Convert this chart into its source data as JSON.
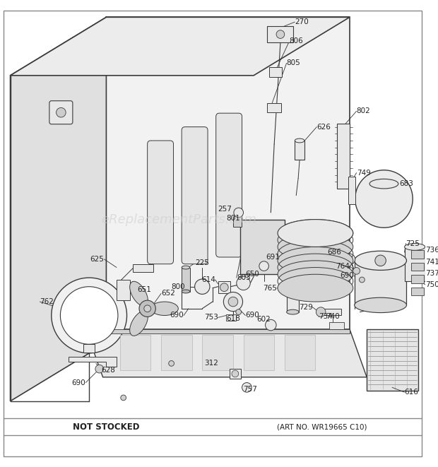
{
  "fig_width": 6.2,
  "fig_height": 6.61,
  "dpi": 100,
  "bg_color": "#ffffff",
  "line_color": "#3a3a3a",
  "light_fill": "#f5f5f5",
  "mid_fill": "#e8e8e8",
  "dark_fill": "#d0d0d0",
  "watermark": "eReplacementParts.com",
  "bottom_left": "NOT STOCKED",
  "bottom_right": "(ART NO. WR19665 C10)"
}
